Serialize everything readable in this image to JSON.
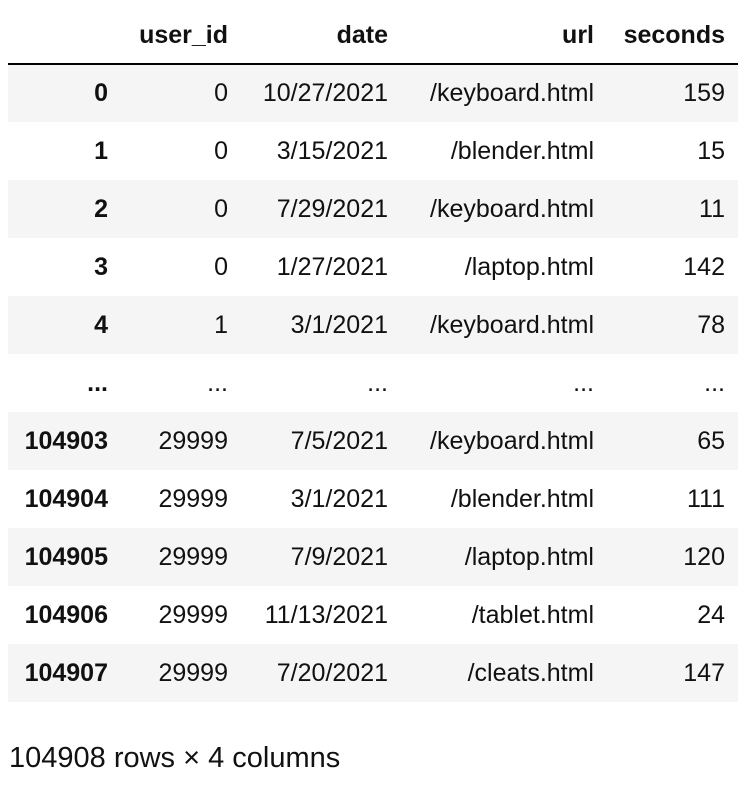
{
  "table": {
    "columns": [
      "",
      "user_id",
      "date",
      "url",
      "seconds"
    ],
    "rows": [
      {
        "index": "0",
        "user_id": "0",
        "date": "10/27/2021",
        "url": "/keyboard.html",
        "seconds": "159"
      },
      {
        "index": "1",
        "user_id": "0",
        "date": "3/15/2021",
        "url": "/blender.html",
        "seconds": "15"
      },
      {
        "index": "2",
        "user_id": "0",
        "date": "7/29/2021",
        "url": "/keyboard.html",
        "seconds": "11"
      },
      {
        "index": "3",
        "user_id": "0",
        "date": "1/27/2021",
        "url": "/laptop.html",
        "seconds": "142"
      },
      {
        "index": "4",
        "user_id": "1",
        "date": "3/1/2021",
        "url": "/keyboard.html",
        "seconds": "78"
      },
      {
        "index": "...",
        "user_id": "...",
        "date": "...",
        "url": "...",
        "seconds": "..."
      },
      {
        "index": "104903",
        "user_id": "29999",
        "date": "7/5/2021",
        "url": "/keyboard.html",
        "seconds": "65"
      },
      {
        "index": "104904",
        "user_id": "29999",
        "date": "3/1/2021",
        "url": "/blender.html",
        "seconds": "111"
      },
      {
        "index": "104905",
        "user_id": "29999",
        "date": "7/9/2021",
        "url": "/laptop.html",
        "seconds": "120"
      },
      {
        "index": "104906",
        "user_id": "29999",
        "date": "11/13/2021",
        "url": "/tablet.html",
        "seconds": "24"
      },
      {
        "index": "104907",
        "user_id": "29999",
        "date": "7/20/2021",
        "url": "/cleats.html",
        "seconds": "147"
      }
    ]
  },
  "shape_text": "104908 rows × 4 columns"
}
